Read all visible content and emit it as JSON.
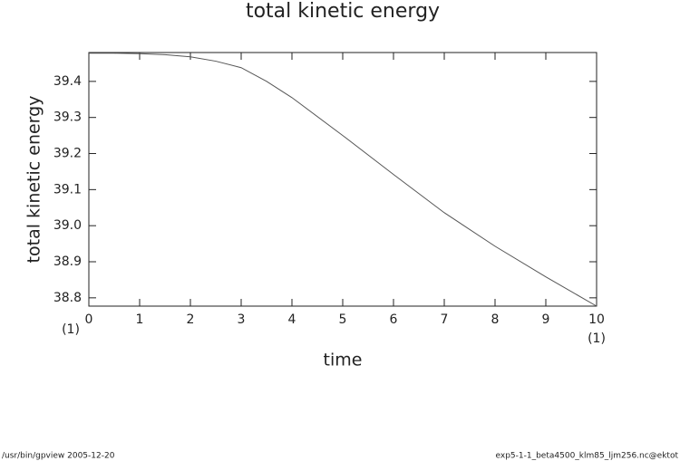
{
  "chart_data": {
    "type": "line",
    "title": "total kinetic energy",
    "x_label": "time",
    "y_label": "total kinetic energy",
    "annotations": [
      "(1)",
      "(1)"
    ],
    "footer_left": "/usr/bin/gpview  2005-12-20",
    "footer_right": "exp5-1-1_beta4500_klm85_ljm256.nc@ektot",
    "x": [
      0,
      0.5,
      1,
      1.5,
      2,
      2.5,
      3,
      3.5,
      4,
      5,
      6,
      7,
      8,
      9,
      10
    ],
    "series": [
      {
        "color": "#555555",
        "values": [
          39.478,
          39.478,
          39.477,
          39.474,
          39.468,
          39.456,
          39.438,
          39.4,
          39.355,
          39.25,
          39.142,
          39.036,
          38.943,
          38.858,
          38.777
        ]
      }
    ],
    "xlim": [
      0,
      10
    ],
    "ylim": [
      38.777,
      39.48
    ],
    "xticks": [
      0,
      1,
      2,
      3,
      4,
      5,
      6,
      7,
      8,
      9,
      10
    ],
    "yticks": [
      38.8,
      38.9,
      {
        "value": 39,
        "label": "39.0"
      },
      39.1,
      39.2,
      39.3,
      39.4
    ],
    "grid": false
  }
}
